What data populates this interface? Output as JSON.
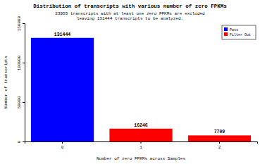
{
  "chart_data": {
    "type": "bar",
    "title": "Distribution of transcripts with various number of zero FPKMs",
    "subtitle": [
      "23955 transcripts with at least one zero FPKMs are excluded",
      "leaving 131444 transcripts to be analyzed."
    ],
    "x_label": "Number of zero FPKMs across Samples",
    "y_label": "Number of transcripts",
    "categories": [
      "0",
      "1",
      "2"
    ],
    "series": [
      {
        "name": "Pass",
        "color": "#0000ff",
        "values": [
          131444,
          null,
          null
        ]
      },
      {
        "name": "Filter Out",
        "color": "#ff0000",
        "values": [
          null,
          16246,
          7709
        ]
      }
    ],
    "ylim": [
      0,
      150000
    ],
    "yticks": [
      0,
      50000,
      100000,
      150000
    ],
    "data_labels": true,
    "legend": "top-right",
    "grid": false
  }
}
